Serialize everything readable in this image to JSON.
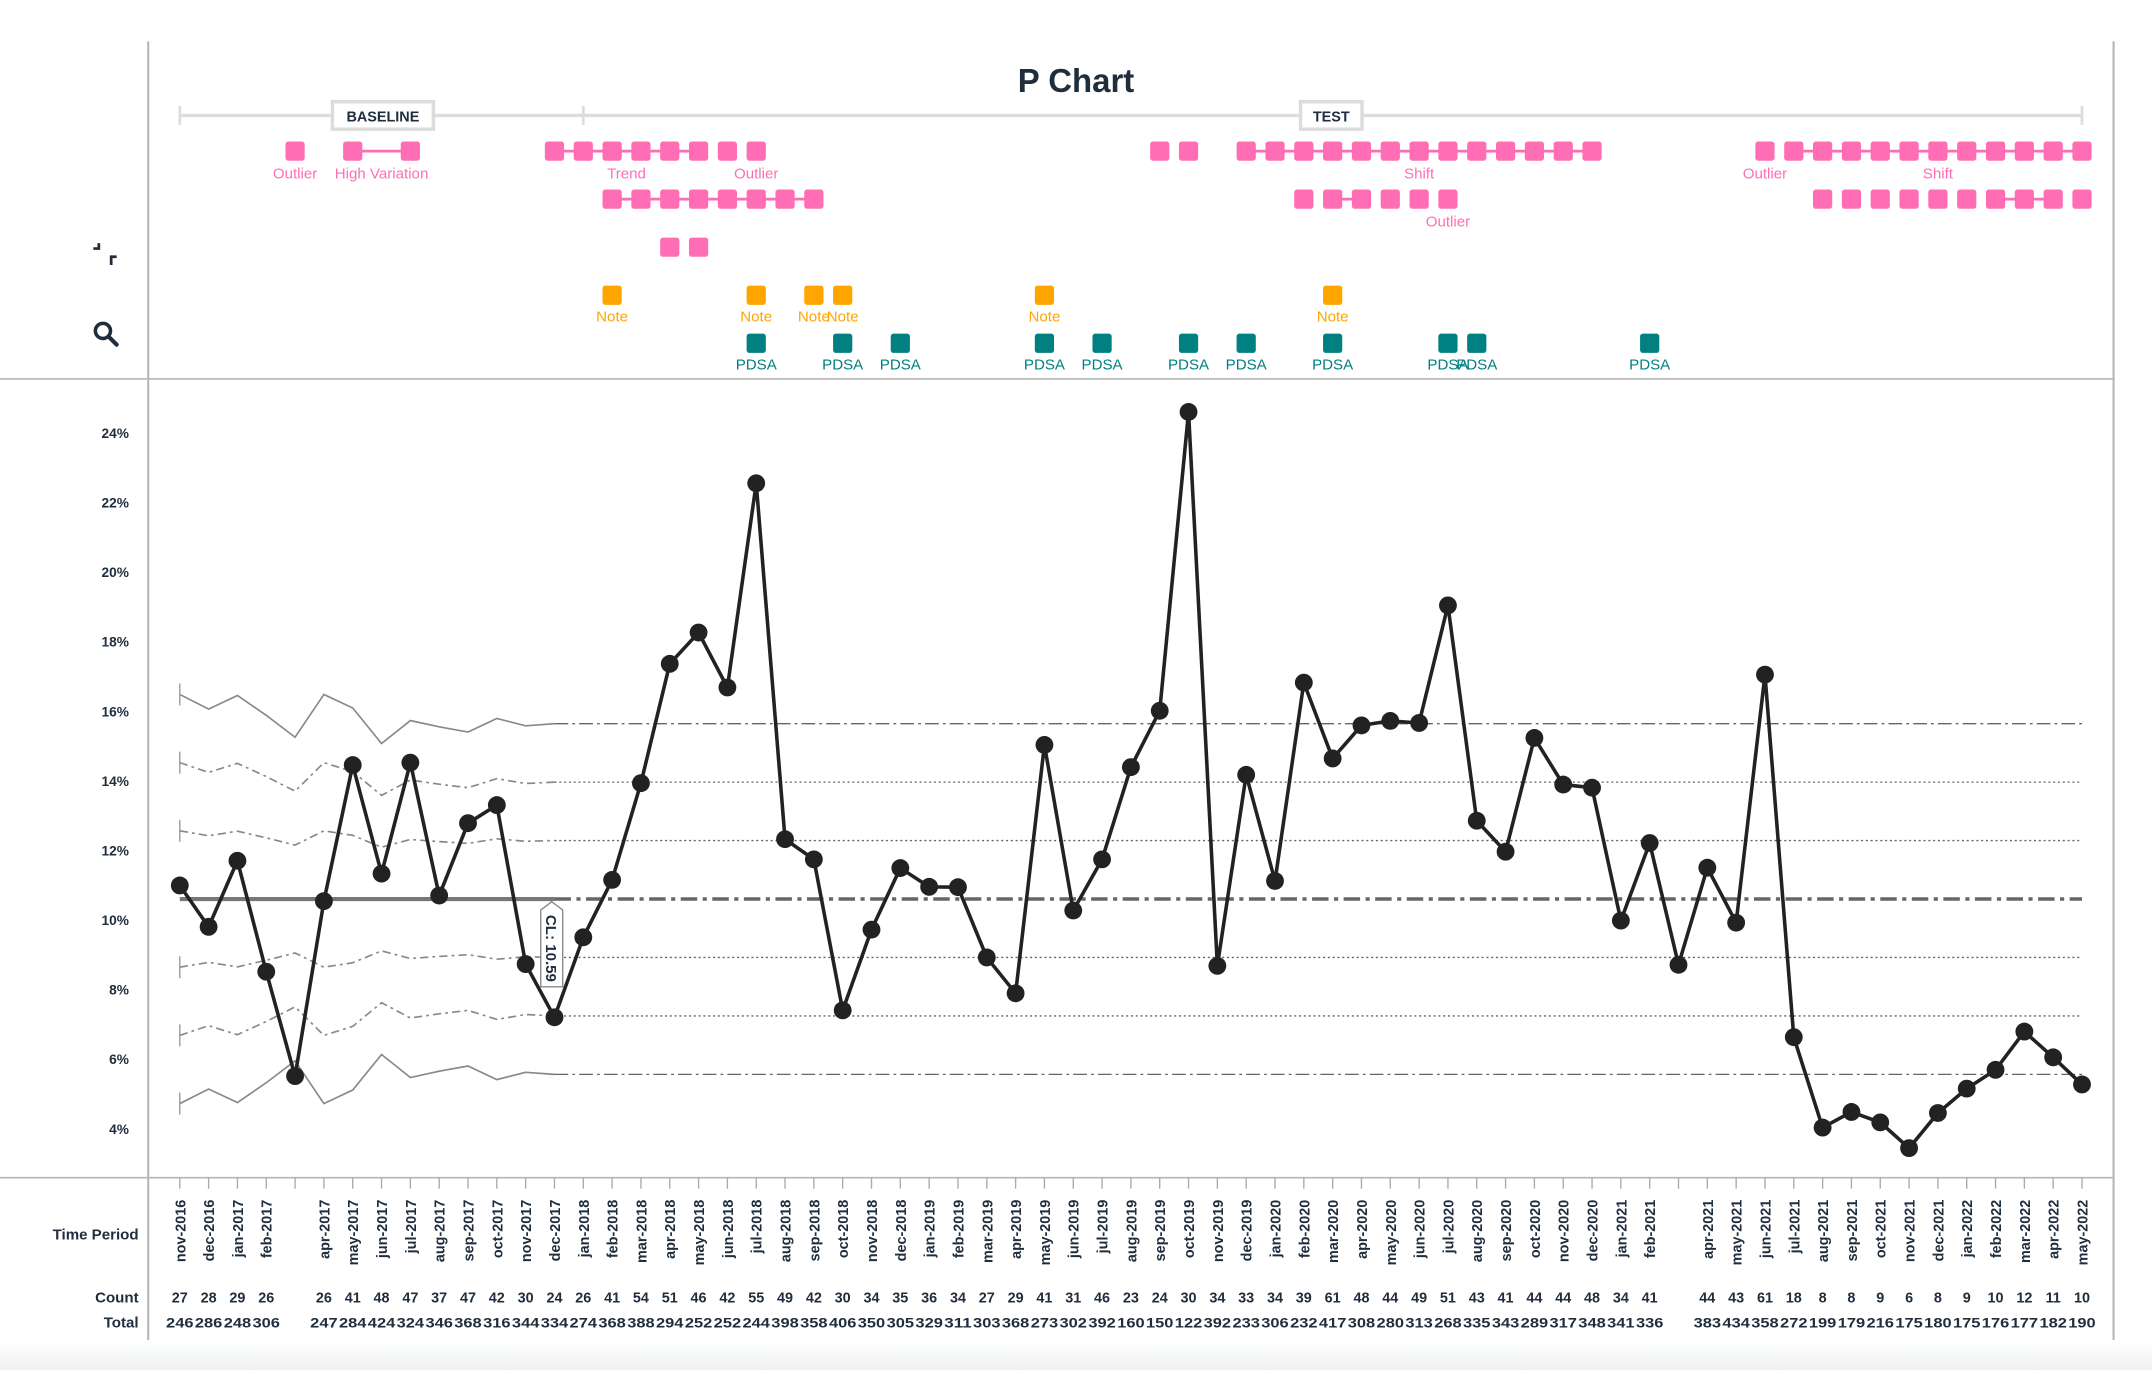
{
  "colors": {
    "signal": "#ff6eb4",
    "note": "#ffa500",
    "pdsa": "#008080",
    "text": "#1f2d3d",
    "data_line": "#222222",
    "limit_line": "#777777",
    "phase_bar": "#dddddd"
  },
  "toolbar": {
    "collapse_icon": "collapse-icon",
    "search_icon": "search-icon"
  },
  "phases": [
    {
      "label": "BASELINE",
      "start": 0,
      "end": 14
    },
    {
      "label": "TEST",
      "start": 14,
      "end": 66
    }
  ],
  "signal_rows": [
    [
      {
        "points": [
          4
        ],
        "links": [],
        "label": "Outlier",
        "label_at": 4
      },
      {
        "points": [
          6,
          8
        ],
        "links": [
          [
            6,
            8
          ]
        ],
        "label": "High Variation",
        "label_at": 7
      },
      {
        "points": [
          13,
          14,
          15,
          16,
          17,
          18
        ],
        "links": [
          [
            13,
            18
          ]
        ],
        "label": "Trend",
        "label_at": 15.5
      },
      {
        "points": [
          19,
          20
        ],
        "links": [],
        "label": "Outlier",
        "label_at": 20
      },
      {
        "points": [
          34,
          35
        ],
        "links": [],
        "label": "",
        "label_at": 35
      },
      {
        "points": [
          37,
          38,
          39,
          40,
          41,
          42,
          43,
          44,
          45,
          46,
          47,
          48,
          49
        ],
        "links": [
          [
            37,
            49
          ]
        ],
        "label": "Shift",
        "label_at": 43
      },
      {
        "points": [
          55
        ],
        "links": [],
        "label": "Outlier",
        "label_at": 55
      },
      {
        "points": [
          56,
          57,
          58,
          59,
          60,
          61,
          62,
          63,
          64,
          65,
          66
        ],
        "links": [
          [
            56,
            66
          ]
        ],
        "label": "Shift",
        "label_at": 61
      }
    ],
    [
      {
        "points": [
          15,
          16,
          17,
          18,
          19,
          20,
          21,
          22
        ],
        "links": [
          [
            15,
            22
          ]
        ],
        "label": "",
        "label_at": 18
      },
      {
        "points": [
          39,
          40,
          41,
          42,
          43,
          44
        ],
        "links": [
          [
            40,
            41
          ]
        ],
        "label": "Outlier",
        "label_at": 44
      },
      {
        "points": [
          57,
          58,
          59,
          60,
          61,
          62,
          63,
          64,
          65,
          66
        ],
        "links": [
          [
            63,
            65
          ]
        ],
        "label": "",
        "label_at": 61
      }
    ],
    [
      {
        "points": [
          17,
          18
        ],
        "links": [],
        "label": "",
        "label_at": 17
      }
    ]
  ],
  "notes": {
    "label": "Note",
    "points": [
      15,
      20,
      22,
      23,
      30,
      40
    ]
  },
  "pdsa": {
    "label": "PDSA",
    "points": [
      20,
      23,
      25,
      30,
      32,
      35,
      37,
      40,
      44,
      45,
      51
    ]
  },
  "table": {
    "time_period_label": "Time Period",
    "count_label": "Count",
    "total_label": "Total"
  },
  "chart_data": {
    "type": "line",
    "title": "P Chart",
    "xlabel": "Time Period",
    "ylabel": "",
    "ylim": [
      3,
      25.5
    ],
    "y_ticks": [
      4,
      6,
      8,
      10,
      12,
      14,
      16,
      18,
      20,
      22,
      24
    ],
    "y_tick_suffix": "%",
    "grid": false,
    "categories": [
      "nov-2016",
      "dec-2016",
      "jan-2017",
      "feb-2017",
      "",
      "apr-2017",
      "may-2017",
      "jun-2017",
      "jul-2017",
      "aug-2017",
      "sep-2017",
      "oct-2017",
      "nov-2017",
      "dec-2017",
      "jan-2018",
      "feb-2018",
      "mar-2018",
      "apr-2018",
      "may-2018",
      "jun-2018",
      "jul-2018",
      "aug-2018",
      "sep-2018",
      "oct-2018",
      "nov-2018",
      "dec-2018",
      "jan-2019",
      "feb-2019",
      "mar-2019",
      "apr-2019",
      "may-2019",
      "jun-2019",
      "jul-2019",
      "aug-2019",
      "sep-2019",
      "oct-2019",
      "nov-2019",
      "dec-2019",
      "jan-2020",
      "feb-2020",
      "mar-2020",
      "apr-2020",
      "may-2020",
      "jun-2020",
      "jul-2020",
      "aug-2020",
      "sep-2020",
      "oct-2020",
      "nov-2020",
      "dec-2020",
      "jan-2021",
      "feb-2021",
      "",
      "apr-2021",
      "may-2021",
      "jun-2021",
      "jul-2021",
      "aug-2021",
      "sep-2021",
      "oct-2021",
      "nov-2021",
      "dec-2021",
      "jan-2022",
      "feb-2022",
      "mar-2022",
      "apr-2022",
      "may-2022"
    ],
    "counts": [
      "27",
      "28",
      "29",
      "26",
      "",
      "26",
      "41",
      "48",
      "47",
      "37",
      "47",
      "42",
      "30",
      "24",
      "26",
      "41",
      "54",
      "51",
      "46",
      "42",
      "55",
      "49",
      "42",
      "30",
      "34",
      "35",
      "36",
      "34",
      "27",
      "29",
      "41",
      "31",
      "46",
      "23",
      "24",
      "30",
      "34",
      "33",
      "34",
      "39",
      "61",
      "48",
      "44",
      "49",
      "51",
      "43",
      "41",
      "44",
      "44",
      "48",
      "34",
      "41",
      "",
      "44",
      "43",
      "61",
      "18",
      "8",
      "8",
      "9",
      "6",
      "8",
      "9",
      "10",
      "12",
      "11",
      "10"
    ],
    "totals": [
      "246",
      "286",
      "248",
      "306",
      "",
      "247",
      "284",
      "424",
      "324",
      "346",
      "368",
      "316",
      "344",
      "334",
      "274",
      "368",
      "388",
      "294",
      "252",
      "252",
      "244",
      "398",
      "358",
      "406",
      "350",
      "305",
      "329",
      "311",
      "303",
      "368",
      "273",
      "302",
      "392",
      "160",
      "150",
      "122",
      "392",
      "233",
      "306",
      "232",
      "417",
      "308",
      "280",
      "313",
      "268",
      "335",
      "343",
      "289",
      "317",
      "348",
      "341",
      "336",
      "",
      "383",
      "434",
      "358",
      "272",
      "199",
      "179",
      "216",
      "175",
      "180",
      "175",
      "176",
      "177",
      "182",
      "190"
    ],
    "values": [
      10.98,
      9.79,
      11.69,
      8.5,
      5.5,
      10.53,
      14.44,
      11.32,
      14.51,
      10.69,
      12.77,
      13.29,
      8.72,
      7.19,
      9.49,
      11.14,
      13.92,
      17.35,
      18.25,
      16.67,
      22.54,
      12.31,
      11.73,
      7.39,
      9.71,
      11.48,
      10.94,
      10.93,
      8.91,
      7.88,
      15.02,
      10.26,
      11.73,
      14.38,
      16.0,
      24.59,
      8.67,
      14.16,
      11.11,
      16.81,
      14.63,
      15.58,
      15.71,
      15.65,
      19.03,
      12.84,
      11.95,
      15.22,
      13.88,
      13.79,
      9.97,
      12.2,
      8.7,
      11.49,
      9.91,
      17.04,
      6.62,
      4.02,
      4.47,
      4.17,
      3.43,
      4.44,
      5.14,
      5.68,
      6.78,
      6.04,
      5.26
    ],
    "center_line": 10.59,
    "center_line_label": "CL: 10.59",
    "baseline_sigma": [
      1.96,
      1.82,
      1.95,
      1.76,
      1.55,
      1.96,
      1.83,
      1.49,
      1.71,
      1.65,
      1.6,
      1.73,
      1.66,
      1.68
    ],
    "sigma": 1.68
  }
}
